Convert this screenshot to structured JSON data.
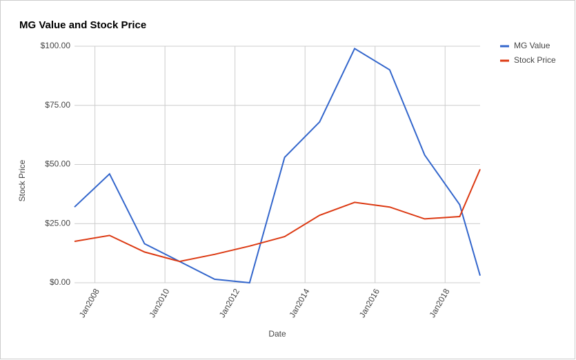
{
  "chart_data": {
    "type": "line",
    "title": "MG Value and Stock Price",
    "x_label": "Date",
    "y_label": "Stock Price",
    "x": [
      "2007-06",
      "2008-06",
      "2009-06",
      "2010-06",
      "2011-06",
      "2012-06",
      "2013-06",
      "2014-06",
      "2015-06",
      "2016-06",
      "2017-06",
      "2018-06",
      "2019-01"
    ],
    "series": [
      {
        "name": "MG Value",
        "color": "#3366cc",
        "values": [
          32,
          46,
          16.5,
          9,
          1.5,
          0,
          53,
          68,
          99,
          90,
          54,
          33,
          3
        ]
      },
      {
        "name": "Stock Price",
        "color": "#dc3912",
        "values": [
          17.5,
          20,
          13,
          9,
          12,
          15.5,
          19.5,
          28.5,
          34,
          32,
          27,
          28,
          48
        ]
      }
    ],
    "xlim": [
      "2007-06",
      "2019-01"
    ],
    "xticks": [
      {
        "value": "2008-01",
        "label": "Jan2008"
      },
      {
        "value": "2010-01",
        "label": "Jan2010"
      },
      {
        "value": "2012-01",
        "label": "Jan2012"
      },
      {
        "value": "2014-01",
        "label": "Jan2014"
      },
      {
        "value": "2016-01",
        "label": "Jan2016"
      },
      {
        "value": "2018-01",
        "label": "Jan2018"
      }
    ],
    "ylim": [
      0,
      100
    ],
    "yticks": [
      {
        "value": 0,
        "label": "$0.00"
      },
      {
        "value": 25,
        "label": "$25.00"
      },
      {
        "value": 50,
        "label": "$50.00"
      },
      {
        "value": 75,
        "label": "$75.00"
      },
      {
        "value": 100,
        "label": "$100.00"
      }
    ],
    "grid": true,
    "legend": "right"
  }
}
